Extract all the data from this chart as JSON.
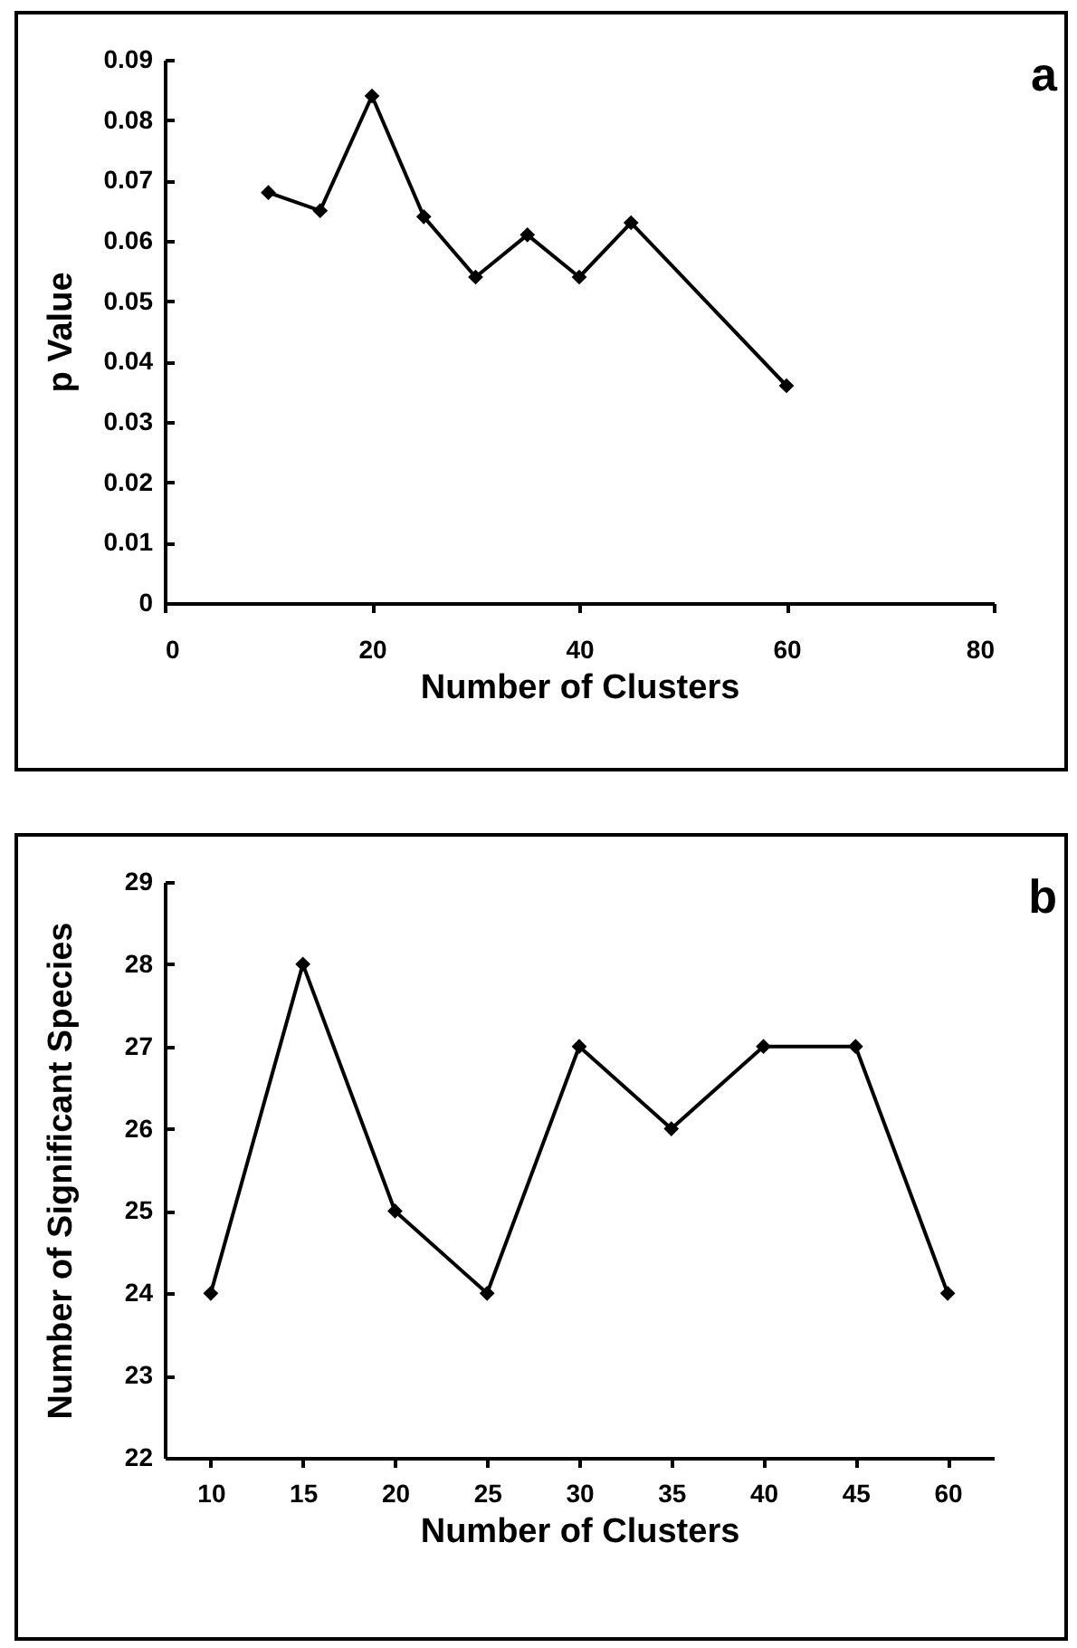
{
  "chart_data": [
    {
      "type": "line",
      "xlabel": "Number of Clusters",
      "ylabel": "p Value",
      "annotations": [
        "a"
      ],
      "x": [
        10,
        15,
        20,
        25,
        30,
        35,
        40,
        45,
        60
      ],
      "series": [
        {
          "color": "#000000",
          "values": [
            0.068,
            0.065,
            0.084,
            0.064,
            0.054,
            0.061,
            0.054,
            0.063,
            0.036
          ]
        }
      ],
      "xlim": [
        0,
        80
      ],
      "xticks": [
        0,
        20,
        40,
        60,
        80
      ],
      "ylim": [
        0,
        0.09
      ],
      "yticks": [
        0,
        0.01,
        0.02,
        0.03,
        0.04,
        0.05,
        0.06,
        0.07,
        0.08,
        0.09
      ],
      "grid": false,
      "legend": false,
      "marker": "diamond",
      "line_style": "solid"
    },
    {
      "type": "line",
      "xlabel": "Number of Clusters",
      "ylabel": "Number of Significant Species",
      "annotations": [
        "b"
      ],
      "categories": [
        "10",
        "15",
        "20",
        "25",
        "30",
        "35",
        "40",
        "45",
        "60"
      ],
      "series": [
        {
          "color": "#000000",
          "values": [
            24,
            28,
            25,
            24,
            27,
            26,
            27,
            27,
            24
          ]
        }
      ],
      "ylim": [
        22,
        29
      ],
      "yticks": [
        22,
        23,
        24,
        25,
        26,
        27,
        28,
        29
      ],
      "grid": false,
      "legend": false,
      "marker": "diamond",
      "line_style": "solid"
    }
  ]
}
